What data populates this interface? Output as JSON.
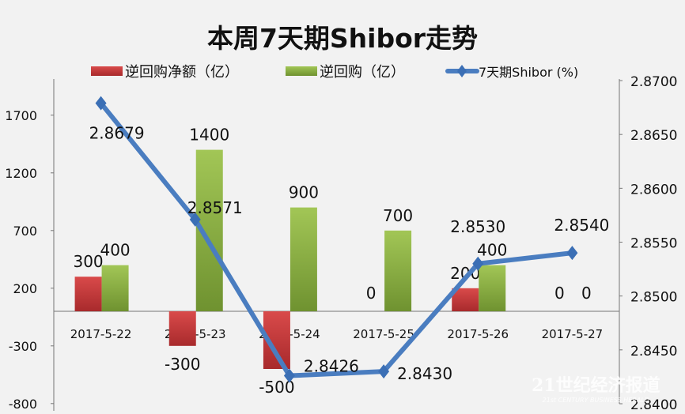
{
  "chart_data": {
    "type": "bar+line",
    "title": "本周7天期Shibor走势",
    "categories": [
      "2017-5-22",
      "2017-5-23",
      "2017-5-24",
      "2017-5-25",
      "2017-5-26",
      "2017-5-27"
    ],
    "series": [
      {
        "name": "逆回购净额（亿）",
        "type": "bar",
        "axis": "left",
        "color": "#c0373a",
        "values": [
          300,
          -300,
          -500,
          0,
          200,
          0
        ]
      },
      {
        "name": "逆回购（亿）",
        "type": "bar",
        "axis": "left",
        "color": "#8db23f",
        "values": [
          400,
          1400,
          900,
          700,
          400,
          0
        ]
      },
      {
        "name": "7天期Shibor (%)",
        "type": "line",
        "axis": "right",
        "color": "#4a7dc0",
        "values": [
          2.8679,
          2.8571,
          2.8426,
          2.843,
          2.853,
          2.854
        ]
      }
    ],
    "left_axis": {
      "ticks": [
        1700,
        1200,
        700,
        200,
        -300,
        -800
      ],
      "range": [
        -800,
        2000
      ]
    },
    "right_axis": {
      "ticks": [
        "2.8700",
        "2.8650",
        "2.8600",
        "2.8550",
        "2.8500",
        "2.8450",
        "2.8400"
      ],
      "range": [
        2.84,
        2.87
      ]
    },
    "line_labels": [
      "2.8679",
      "2.8571",
      "2.8426",
      "2.8430",
      "2.8530",
      "2.8540"
    ],
    "legend": "top",
    "grid": false
  },
  "watermark": {
    "cn": "21世纪经济报道",
    "en": "21st CENTURY BUSINESS HERALD"
  }
}
